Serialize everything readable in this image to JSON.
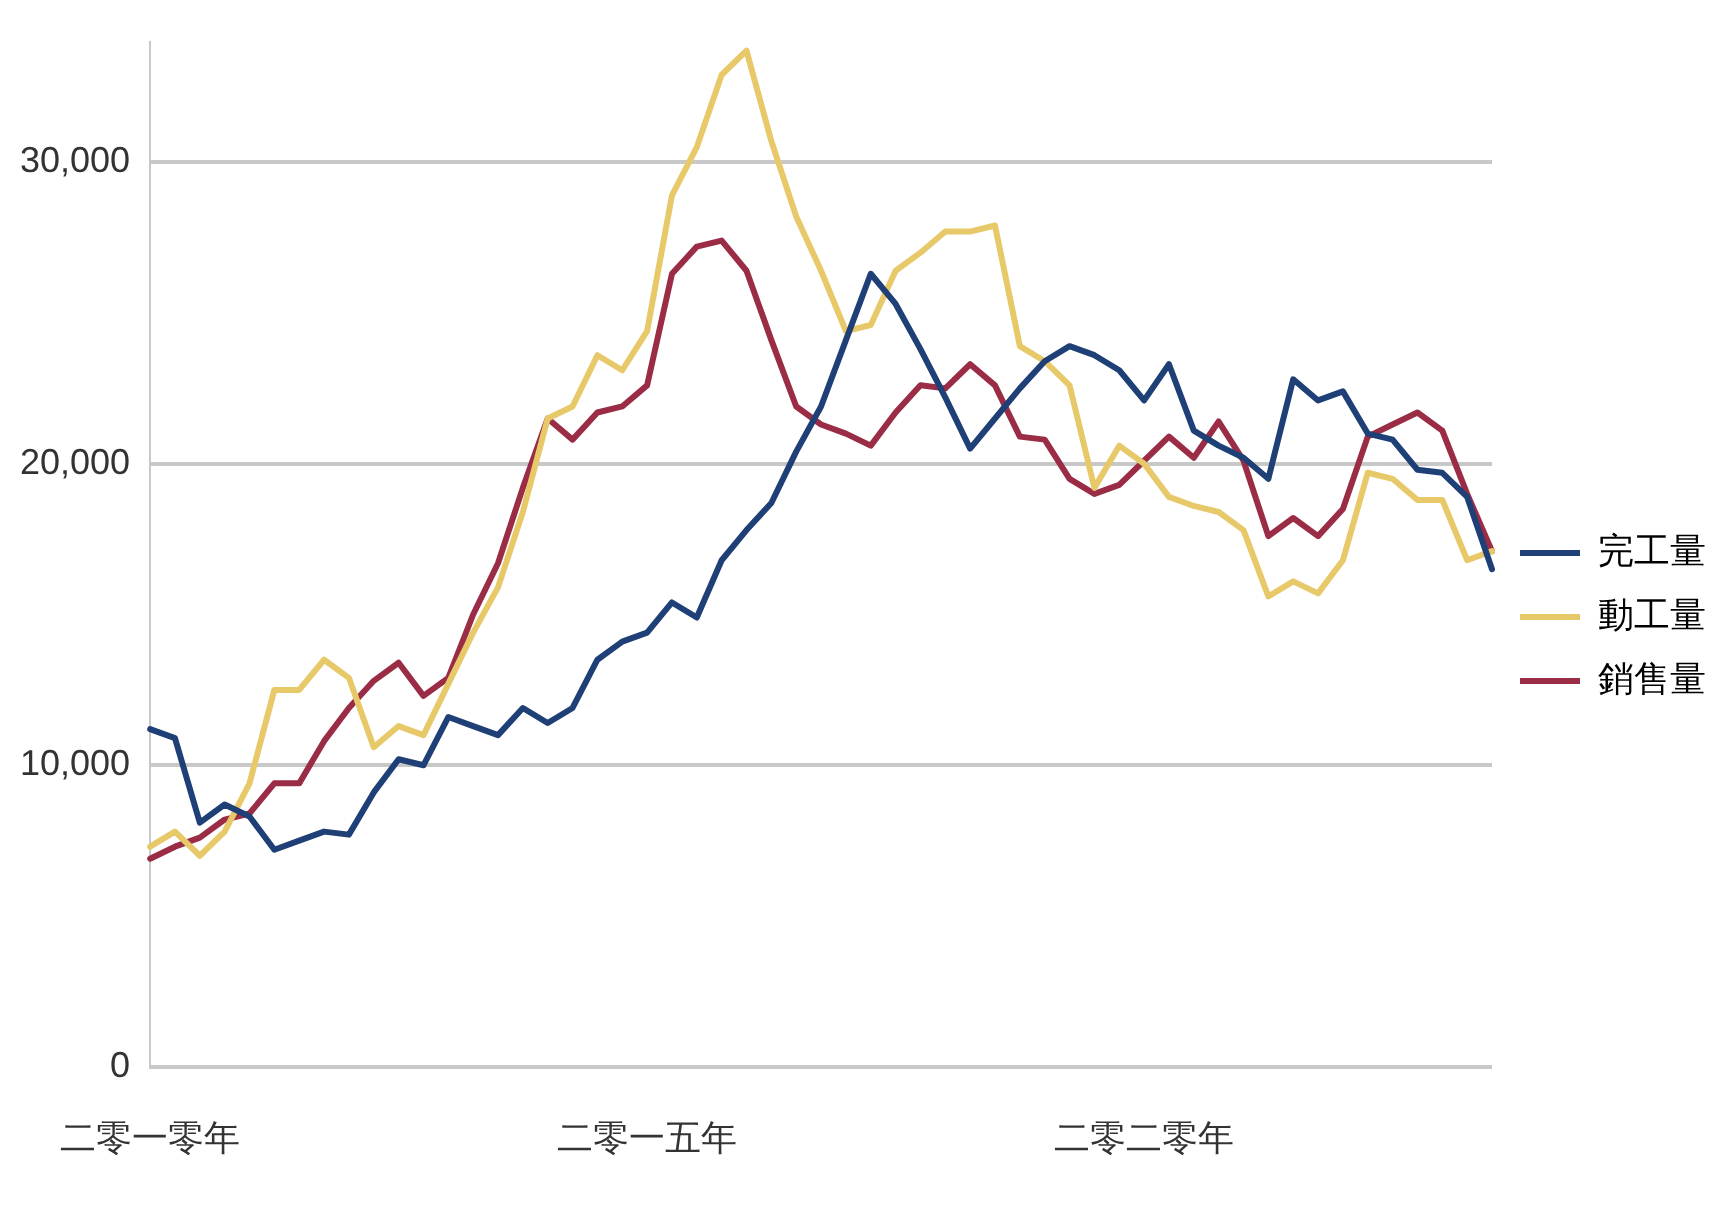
{
  "chart_data": {
    "type": "line",
    "categories": [
      "二零一零年",
      null,
      null,
      null,
      null,
      null,
      null,
      null,
      null,
      null,
      null,
      null,
      null,
      null,
      null,
      null,
      null,
      null,
      null,
      null,
      "二零一五年",
      null,
      null,
      null,
      null,
      null,
      null,
      null,
      null,
      null,
      null,
      null,
      null,
      null,
      null,
      null,
      null,
      null,
      null,
      null,
      "二零二零年",
      null,
      null,
      null,
      null,
      null,
      null,
      null,
      null,
      null,
      null,
      null,
      null,
      null,
      null
    ],
    "series": [
      {
        "name": "完工量",
        "color": "#1f3f77",
        "values": [
          11200,
          10900,
          8100,
          8700,
          8300,
          7200,
          7500,
          7800,
          7700,
          9100,
          10200,
          10000,
          11600,
          11300,
          11000,
          11900,
          11400,
          11900,
          13500,
          14100,
          14400,
          15400,
          14900,
          16800,
          17800,
          18700,
          20400,
          21900,
          24100,
          26300,
          25300,
          23800,
          22200,
          20500,
          21500,
          22500,
          23400,
          23900,
          23600,
          23100,
          22100,
          23300,
          21100,
          20600,
          20200,
          19500,
          22800,
          22100,
          22400,
          21000,
          20800,
          19800,
          19700,
          18900,
          16500
        ]
      },
      {
        "name": "動工量",
        "color": "#e8c96a",
        "values": [
          7300,
          7800,
          7000,
          7800,
          9400,
          12500,
          12500,
          13500,
          12900,
          10600,
          11300,
          11000,
          12700,
          14400,
          15900,
          18400,
          21500,
          21900,
          23600,
          23100,
          24400,
          28900,
          30500,
          32900,
          33700,
          30700,
          28200,
          26400,
          24400,
          24600,
          26400,
          27000,
          27700,
          27700,
          27900,
          23900,
          23400,
          22600,
          19200,
          20600,
          20000,
          18900,
          18600,
          18400,
          17800,
          15600,
          16100,
          15700,
          16800,
          19700,
          19500,
          18800,
          18800,
          16800,
          17100
        ]
      },
      {
        "name": "銷售量",
        "color": "#9b2c45",
        "values": [
          6900,
          7300,
          7600,
          8200,
          8400,
          9400,
          9400,
          10800,
          11900,
          12800,
          13400,
          12300,
          12900,
          15000,
          16700,
          19200,
          21500,
          20800,
          21700,
          21900,
          22600,
          26300,
          27200,
          27400,
          26400,
          24100,
          21900,
          21300,
          21000,
          20600,
          21700,
          22600,
          22500,
          23300,
          22600,
          20900,
          20800,
          19500,
          19000,
          19300,
          20100,
          20900,
          20200,
          21400,
          20100,
          17600,
          18200,
          17600,
          18500,
          20900,
          21300,
          21700,
          21100,
          19000,
          17100
        ]
      }
    ],
    "ylim": [
      0,
      34000
    ],
    "yticks": [
      0,
      {
        "value": 10000,
        "label": "10,000"
      },
      {
        "value": 20000,
        "label": "20,000"
      },
      {
        "value": 30000,
        "label": "30,000"
      }
    ],
    "grid": "y",
    "legend": "right",
    "marker": "none",
    "line_style": "solid"
  }
}
